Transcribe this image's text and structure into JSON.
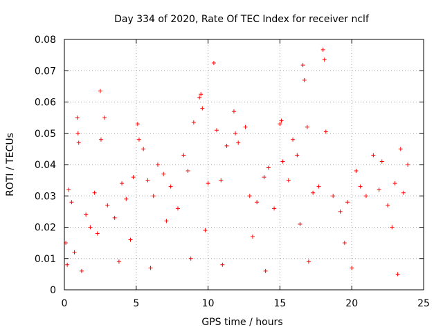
{
  "chart_data": {
    "type": "scatter",
    "title": "Day 334 of 2020, Rate Of TEC Index for receiver nclf",
    "xlabel": "GPS time / hours",
    "ylabel": "ROTI / TECUs",
    "xlim": [
      0,
      25
    ],
    "ylim": [
      0,
      0.08
    ],
    "xticks": [
      0,
      5,
      10,
      15,
      20,
      25
    ],
    "yticks": [
      0,
      0.01,
      0.02,
      0.03,
      0.04,
      0.05,
      0.06,
      0.07,
      0.08
    ],
    "xtick_labels": [
      "0",
      "5",
      "10",
      "15",
      "20",
      "25"
    ],
    "ytick_labels": [
      "0",
      "0.01",
      "0.02",
      "0.03",
      "0.04",
      "0.05",
      "0.06",
      "0.07",
      "0.08"
    ],
    "grid": true,
    "marker": "+",
    "color": "#ff0000",
    "series": [
      {
        "x": [
          0.3,
          0.9,
          0.95,
          1.0,
          2.5,
          2.55,
          2.8,
          5.1,
          5.2,
          5.5,
          6.5,
          8.3,
          9.0,
          9.4,
          9.5,
          9.6,
          10.4,
          10.6,
          11.3,
          11.8,
          11.9,
          12.1,
          12.6,
          14.2,
          15.0,
          15.1,
          15.2,
          15.9,
          16.2,
          16.6,
          16.7,
          16.9,
          18.0,
          18.1,
          18.2,
          20.3,
          21.5,
          22.1,
          23.4,
          23.9,
          0.1,
          0.5,
          1.5,
          1.8,
          2.1,
          3.0,
          3.5,
          4.0,
          4.3,
          4.8,
          5.8,
          6.2,
          6.9,
          7.4,
          7.9,
          8.6,
          10.0,
          10.9,
          12.9,
          13.4,
          13.9,
          14.6,
          15.6,
          17.3,
          17.7,
          18.7,
          19.2,
          19.7,
          20.6,
          21.0,
          21.9,
          22.5,
          23.0,
          23.6,
          0.7,
          2.3,
          4.6,
          7.1,
          9.8,
          13.1,
          16.4,
          19.5,
          22.8,
          0.2,
          1.2,
          3.8,
          6.0,
          8.8,
          11.0,
          14.0,
          17.0,
          20.0,
          23.2
        ],
        "y": [
          0.032,
          0.055,
          0.05,
          0.047,
          0.0635,
          0.048,
          0.055,
          0.053,
          0.048,
          0.045,
          0.04,
          0.043,
          0.0535,
          0.0615,
          0.0625,
          0.058,
          0.0725,
          0.051,
          0.046,
          0.057,
          0.05,
          0.047,
          0.052,
          0.039,
          0.053,
          0.054,
          0.041,
          0.048,
          0.043,
          0.0718,
          0.067,
          0.052,
          0.0767,
          0.0735,
          0.0505,
          0.038,
          0.043,
          0.041,
          0.045,
          0.04,
          0.015,
          0.028,
          0.024,
          0.02,
          0.031,
          0.027,
          0.023,
          0.034,
          0.029,
          0.036,
          0.035,
          0.03,
          0.037,
          0.033,
          0.026,
          0.038,
          0.034,
          0.035,
          0.03,
          0.028,
          0.036,
          0.026,
          0.035,
          0.031,
          0.033,
          0.03,
          0.025,
          0.028,
          0.033,
          0.03,
          0.032,
          0.027,
          0.034,
          0.031,
          0.012,
          0.018,
          0.016,
          0.022,
          0.019,
          0.017,
          0.021,
          0.015,
          0.02,
          0.008,
          0.006,
          0.009,
          0.007,
          0.01,
          0.008,
          0.006,
          0.009,
          0.007,
          0.005
        ]
      }
    ]
  }
}
